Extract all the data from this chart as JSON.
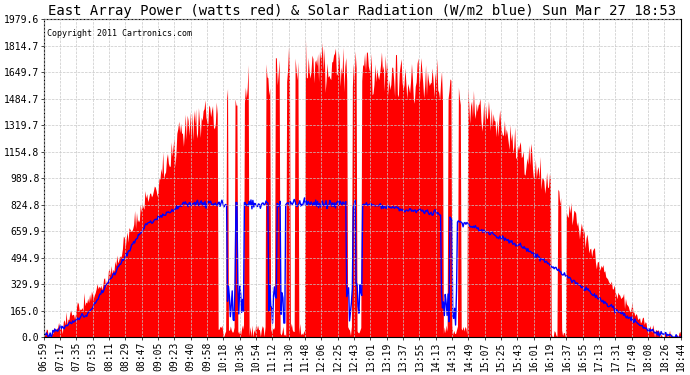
{
  "title": "East Array Power (watts red) & Solar Radiation (W/m2 blue) Sun Mar 27 18:53",
  "copyright": "Copyright 2011 Cartronics.com",
  "yticks": [
    0.0,
    165.0,
    329.9,
    494.9,
    659.9,
    824.8,
    989.8,
    1154.8,
    1319.7,
    1484.7,
    1649.7,
    1814.7,
    1979.6
  ],
  "ymax": 1979.6,
  "xtick_labels": [
    "06:59",
    "07:17",
    "07:35",
    "07:53",
    "08:11",
    "08:29",
    "08:47",
    "09:05",
    "09:23",
    "09:40",
    "09:58",
    "10:18",
    "10:36",
    "10:54",
    "11:12",
    "11:30",
    "11:48",
    "12:06",
    "12:25",
    "12:43",
    "13:01",
    "13:19",
    "13:37",
    "13:55",
    "14:13",
    "14:31",
    "14:49",
    "15:07",
    "15:25",
    "15:43",
    "16:01",
    "16:19",
    "16:37",
    "16:55",
    "17:13",
    "17:31",
    "17:49",
    "18:08",
    "18:26",
    "18:44"
  ],
  "bg_color": "#ffffff",
  "plot_bg_color": "#ffffff",
  "grid_color": "#c8c8c8",
  "red_color": "#ff0000",
  "blue_color": "#0000ff",
  "title_fontsize": 10,
  "tick_fontsize": 7
}
